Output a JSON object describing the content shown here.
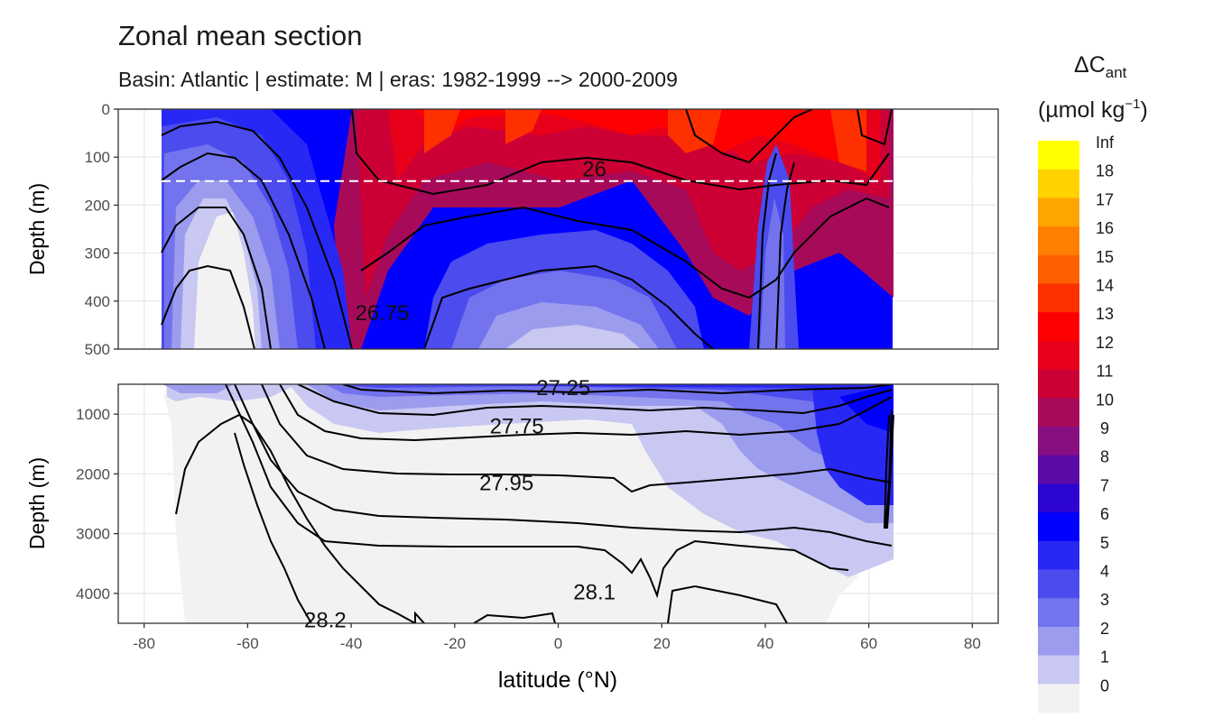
{
  "chart_data": {
    "type": "heatmap",
    "title": "Zonal mean section",
    "subtitle": "Basin: Atlantic | estimate: M  | eras: 1982-1999 --> 2000-2009",
    "xlabel": "latitude (°N)",
    "ylabel": "Depth (m)",
    "xlim": [
      -85,
      85
    ],
    "x_ticks": [
      -80,
      -60,
      -40,
      -20,
      0,
      20,
      40,
      60,
      80
    ],
    "panels": [
      {
        "name": "upper",
        "ylim": [
          0,
          500
        ],
        "y_ticks": [
          0,
          100,
          200,
          300,
          400,
          500
        ]
      },
      {
        "name": "lower",
        "ylim": [
          500,
          4500
        ],
        "y_ticks": [
          1000,
          2000,
          3000,
          4000
        ]
      }
    ],
    "reference_depth": 150,
    "legend": {
      "title_main": "ΔC",
      "title_sub": "ant",
      "unit_pre": "(µmol kg",
      "unit_sup": "−1",
      "unit_post": ")",
      "levels": [
        "Inf",
        "18",
        "17",
        "16",
        "15",
        "14",
        "13",
        "12",
        "11",
        "10",
        "9",
        "8",
        "7",
        "6",
        "5",
        "4",
        "3",
        "2",
        "1",
        "0"
      ],
      "colors": [
        "#ffff00",
        "#ffd200",
        "#ffa500",
        "#ff8000",
        "#ff5f00",
        "#ff3000",
        "#ff0000",
        "#e8001a",
        "#cc0035",
        "#a80a5a",
        "#870f82",
        "#5a0aa5",
        "#2d05d2",
        "#0000ff",
        "#2828f5",
        "#4b4bee",
        "#7373ee",
        "#9c9cee",
        "#c8c8f2",
        "#f2f2f2"
      ]
    },
    "contour_labels": [
      {
        "text": "26",
        "lat": 7,
        "depth": 125,
        "panel": "upper"
      },
      {
        "text": "26.75",
        "lat": -34,
        "depth": 425,
        "panel": "upper"
      },
      {
        "text": "27.25",
        "lat": 1,
        "depth": 560,
        "panel": "lower"
      },
      {
        "text": "27.75",
        "lat": -8,
        "depth": 1200,
        "panel": "lower"
      },
      {
        "text": "27.95",
        "lat": -10,
        "depth": 2150,
        "panel": "lower"
      },
      {
        "text": "28.1",
        "lat": 7,
        "depth": 3980,
        "panel": "lower"
      },
      {
        "text": "28.2",
        "lat": -45,
        "depth": 4450,
        "panel": "lower"
      }
    ]
  }
}
